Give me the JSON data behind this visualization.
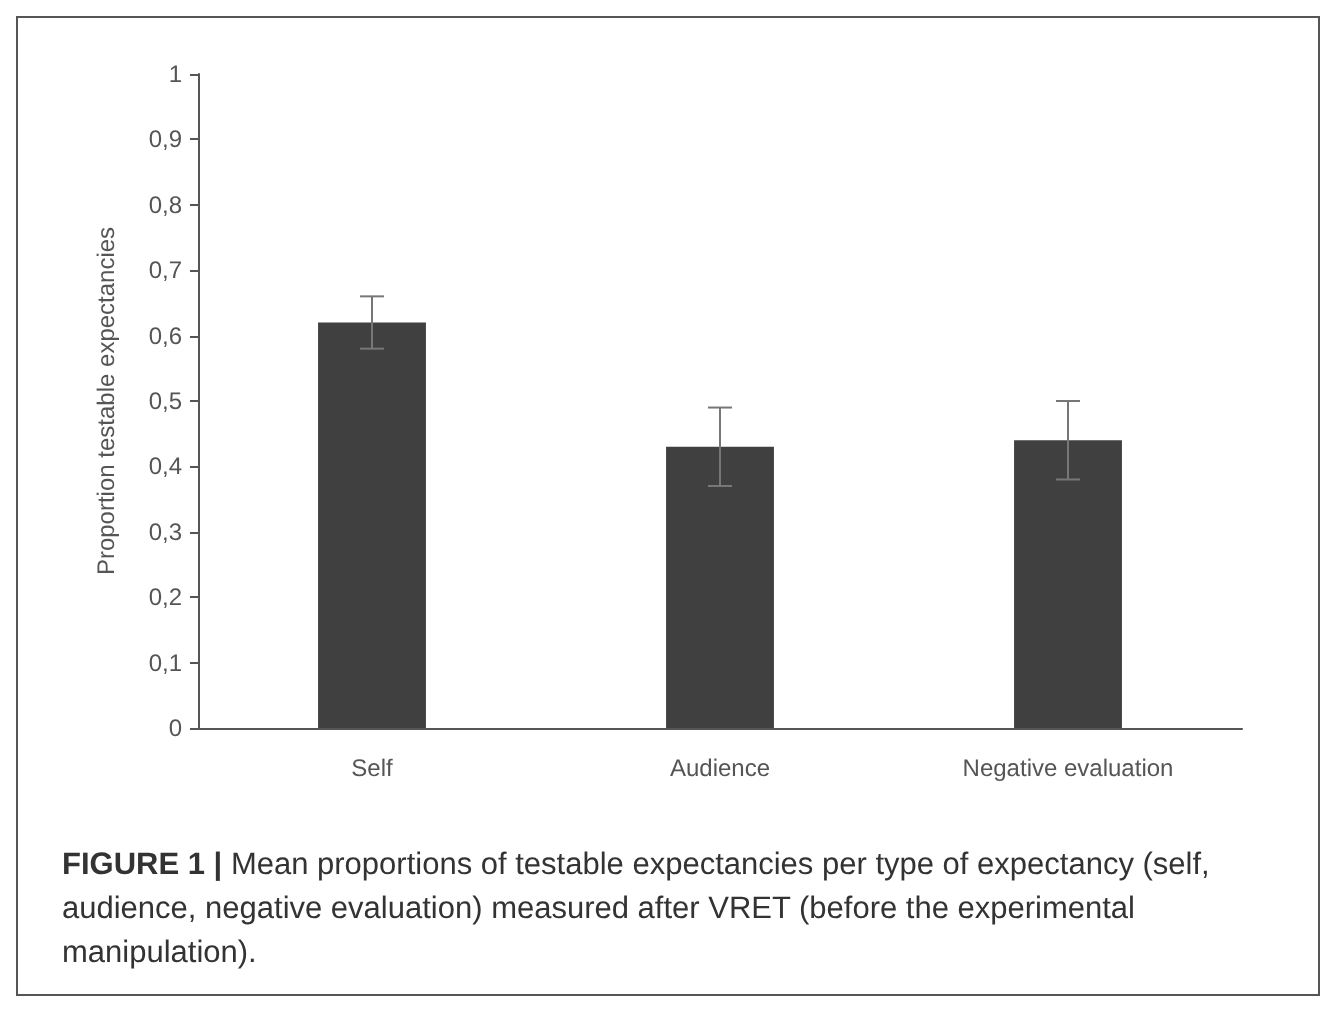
{
  "chart_data": {
    "type": "bar",
    "ylabel": "Proportion testable expectancies",
    "categories": [
      "Self",
      "Audience",
      "Negative evaluation"
    ],
    "values": [
      0.62,
      0.43,
      0.44
    ],
    "errors": [
      0.04,
      0.06,
      0.06
    ],
    "color": "#404040",
    "ylim": [
      0,
      1
    ],
    "yticks": [
      0,
      {
        "value": 0.1,
        "label": "0,1"
      },
      {
        "value": 0.2,
        "label": "0,2"
      },
      {
        "value": 0.3,
        "label": "0,3"
      },
      {
        "value": 0.4,
        "label": "0,4"
      },
      {
        "value": 0.5,
        "label": "0,5"
      },
      {
        "value": 0.6,
        "label": "0,6"
      },
      {
        "value": 0.7,
        "label": "0,7"
      },
      {
        "value": 0.8,
        "label": "0,8"
      },
      {
        "value": 0.9,
        "label": "0,9"
      },
      1
    ],
    "grid": false,
    "annotations": [
      "FIGURE 1 | Mean proportions of testable expectancies per type of expectancy (self, audience, negative evaluation) measured after VRET (before the experimental manipulation)."
    ]
  }
}
